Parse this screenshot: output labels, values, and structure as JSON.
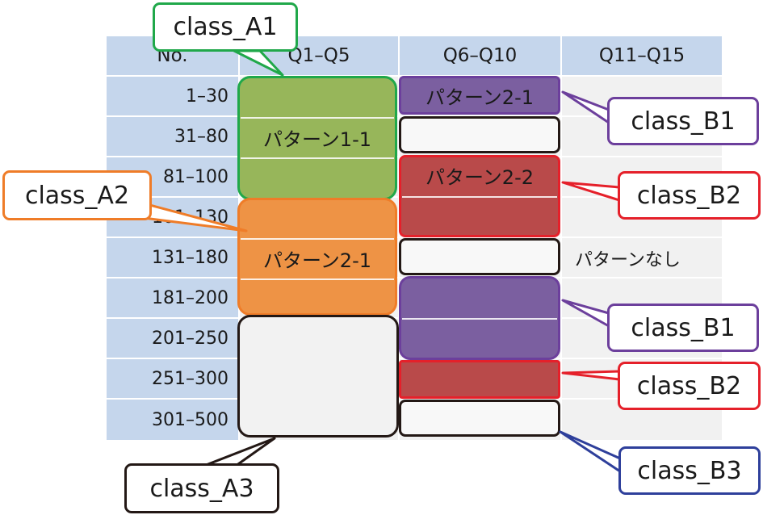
{
  "table": {
    "headers": [
      "No.",
      "Q1–Q5",
      "Q6–Q10",
      "Q11–Q15"
    ],
    "rows": [
      "1–30",
      "31–80",
      "81–100",
      "101–130",
      "131–180",
      "181–200",
      "201–250",
      "251–300",
      "301–500"
    ]
  },
  "patterns": {
    "col1_a1": "パターン1-1",
    "col1_a2": "パターン2-1",
    "col2_b1": "パターン2-1",
    "col2_b2": "パターン2-2",
    "col3_none": "パターンなし"
  },
  "callouts": {
    "class_a1": "class_A1",
    "class_a2": "class_A2",
    "class_a3": "class_A3",
    "class_b1_top": "class_B1",
    "class_b2_top": "class_B2",
    "class_b1_bottom": "class_B1",
    "class_b2_bottom": "class_B2",
    "class_b3": "class_B3"
  },
  "colors": {
    "header_bg": "#c5d6ec",
    "cell_bg": "#f1f1f1",
    "class_a1": "#97b65a",
    "class_a1_border": "#20a84a",
    "class_a2": "#ee9345",
    "class_a2_border": "#ef7c28",
    "class_b1": "#7b5fa0",
    "class_b1_border": "#6c3f9c",
    "class_b2": "#b94a4a",
    "class_b2_border": "#e5202a",
    "class_b3_border": "#2e3f9b",
    "neutral_border": "#231815"
  }
}
